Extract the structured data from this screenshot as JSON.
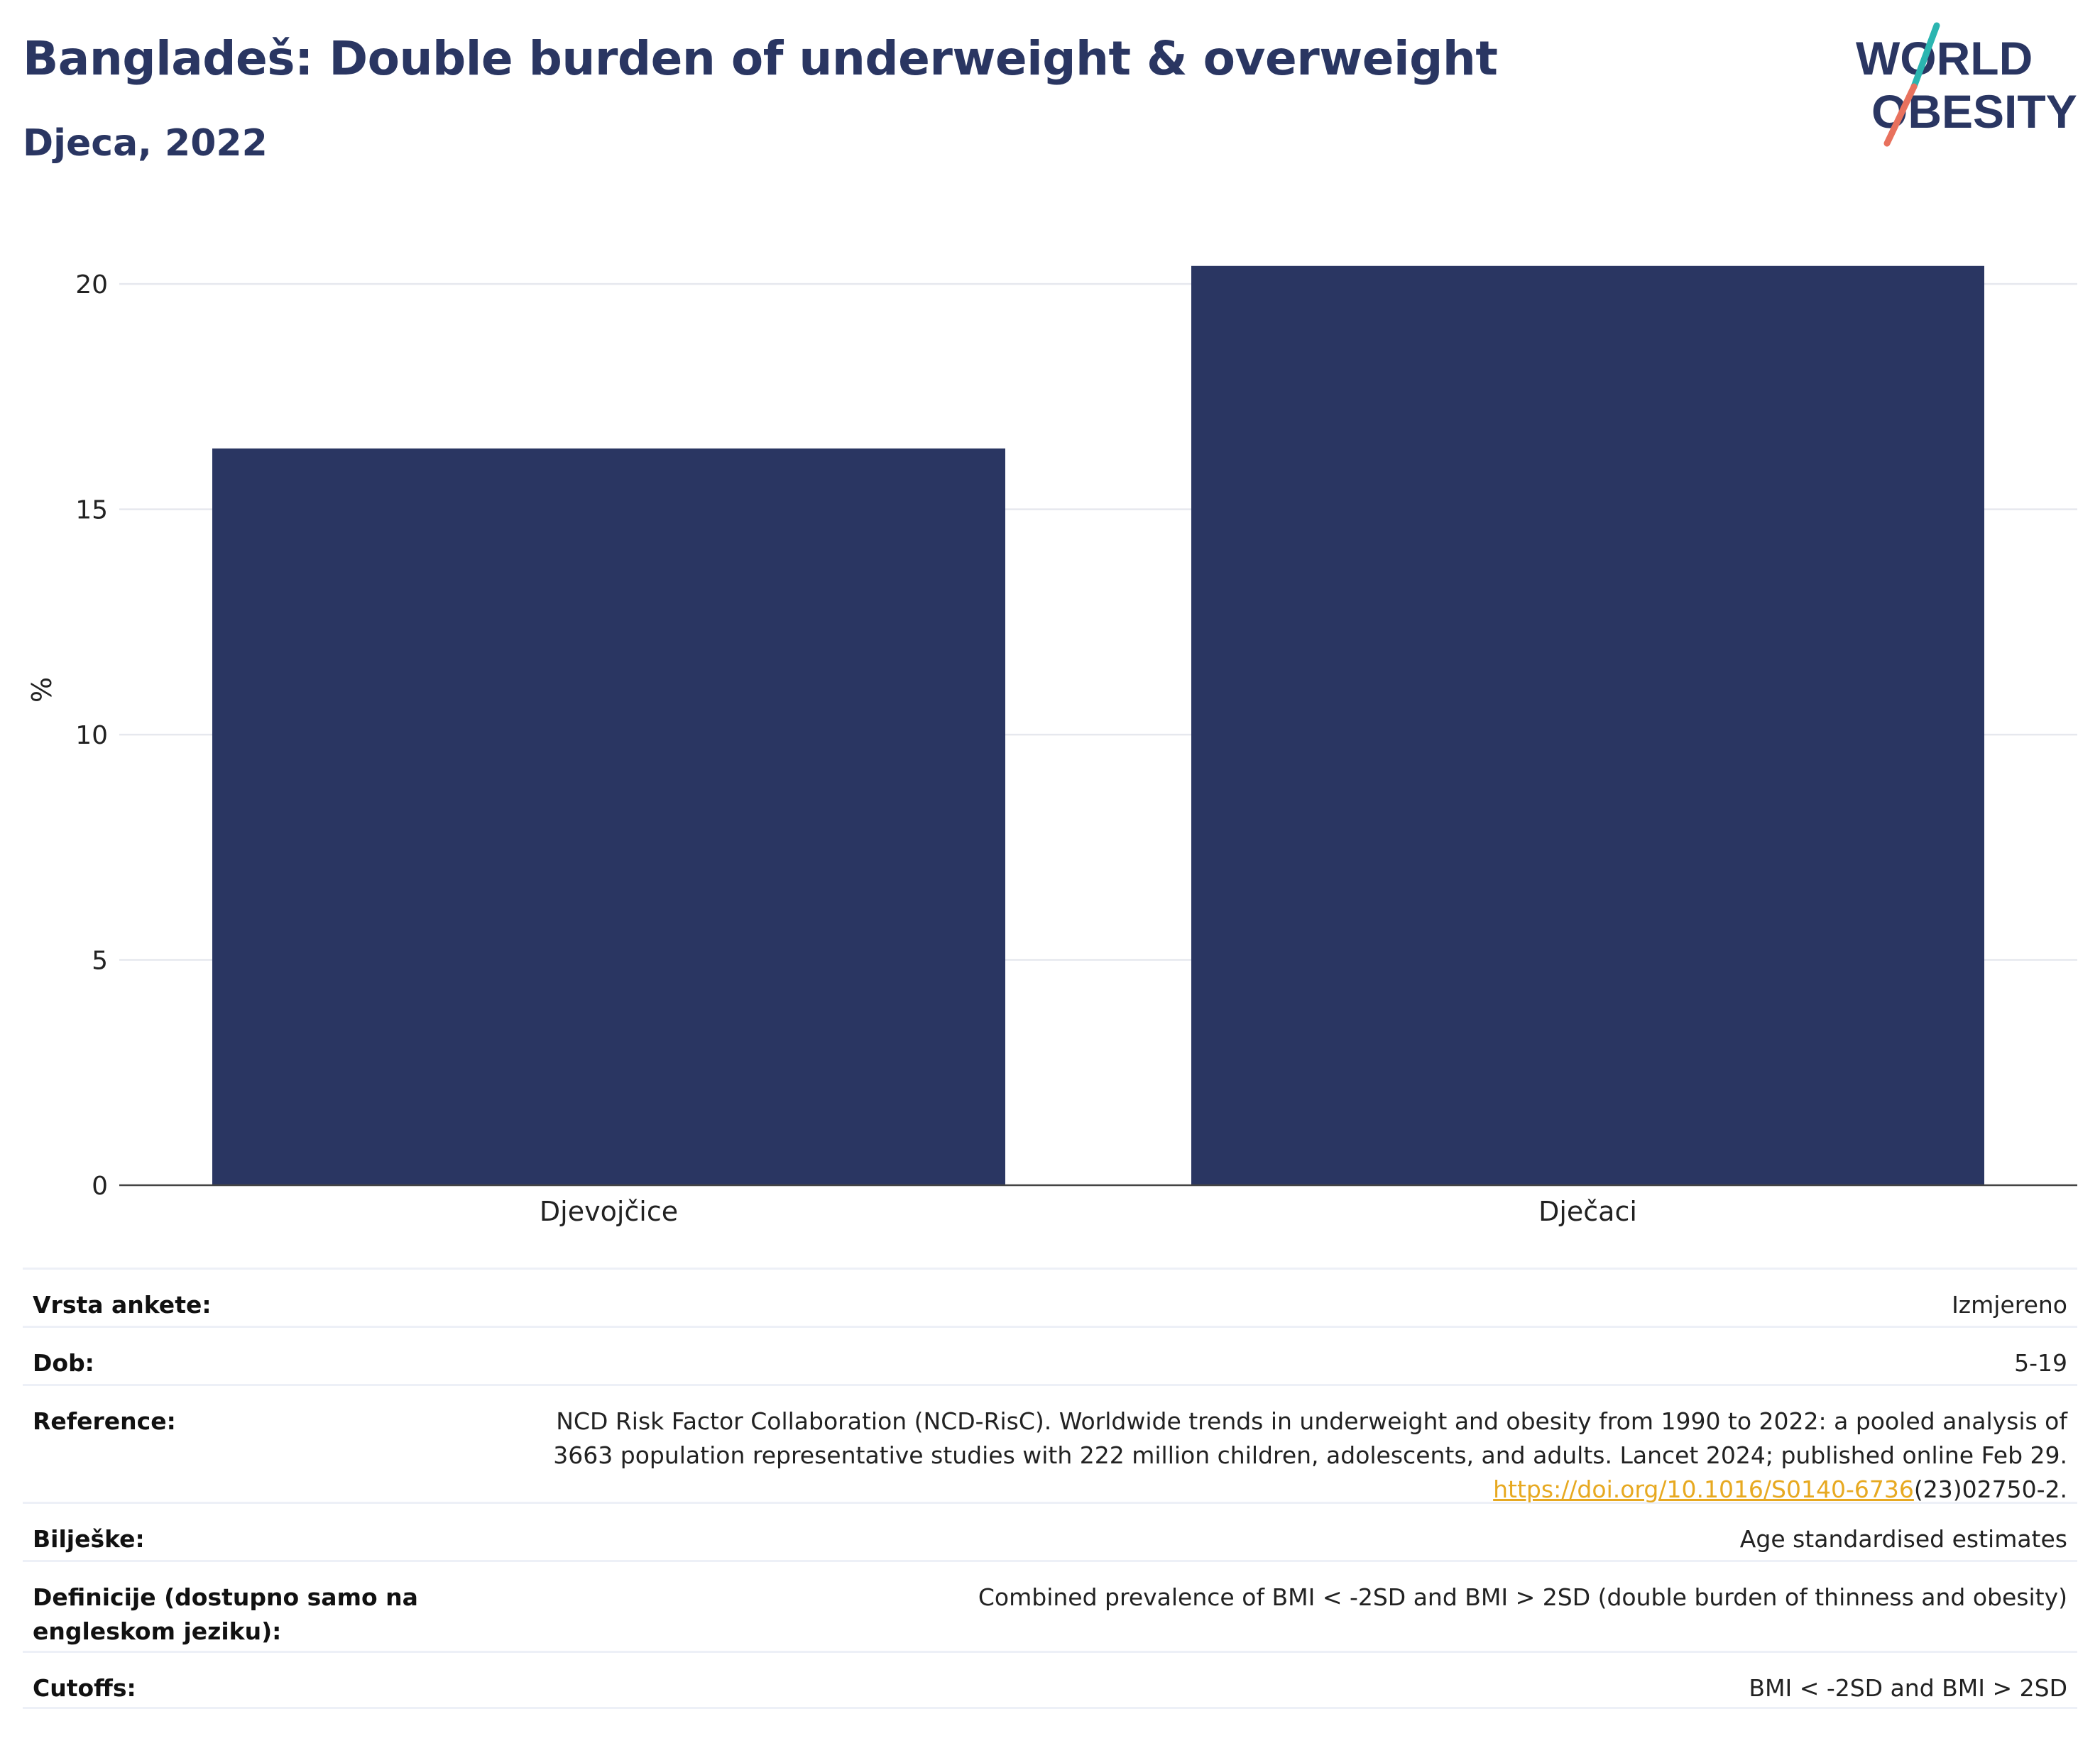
{
  "header": {
    "title": "Bangladeš: Double burden of underweight & overweight",
    "subtitle": "Djeca, 2022"
  },
  "logo": {
    "line1": "WORLD",
    "line2": "OBESITY",
    "colors": {
      "text": "#2a3662",
      "slash_top": "#2bb5b0",
      "slash_bottom": "#e8715d"
    }
  },
  "chart_data": {
    "type": "bar",
    "categories": [
      "Djevojčice",
      "Dječaci"
    ],
    "values": [
      16.35,
      20.4
    ],
    "ylabel": "%",
    "ylim": [
      0,
      20.9
    ],
    "yticks": [
      0,
      5,
      10,
      15,
      20
    ],
    "grid": true,
    "bar_color": "#2a3662"
  },
  "meta": {
    "rows": [
      {
        "label": "Vrsta ankete:",
        "value": "Izmjereno"
      },
      {
        "label": "Dob:",
        "value": "5-19"
      },
      {
        "label": "Reference:",
        "value_lines": [
          "NCD Risk Factor Collaboration (NCD-RisC). Worldwide trends in underweight and obesity from 1990 to 2022: a pooled analysis of",
          "3663 population representative studies with 222 million children, adolescents, and adults. Lancet 2024; published online Feb 29."
        ],
        "link": "https://doi.org/10.1016/S0140-6736",
        "link_suffix": "(23)02750-2."
      },
      {
        "label": "Bilješke:",
        "value": "Age standardised estimates"
      },
      {
        "label": "Definicije (dostupno samo na engleskom jeziku):",
        "value": "Combined prevalence of BMI < -2SD and BMI > 2SD (double burden of thinness and obesity)"
      },
      {
        "label": "Cutoffs:",
        "value": "BMI < -2SD and BMI > 2SD"
      }
    ]
  }
}
